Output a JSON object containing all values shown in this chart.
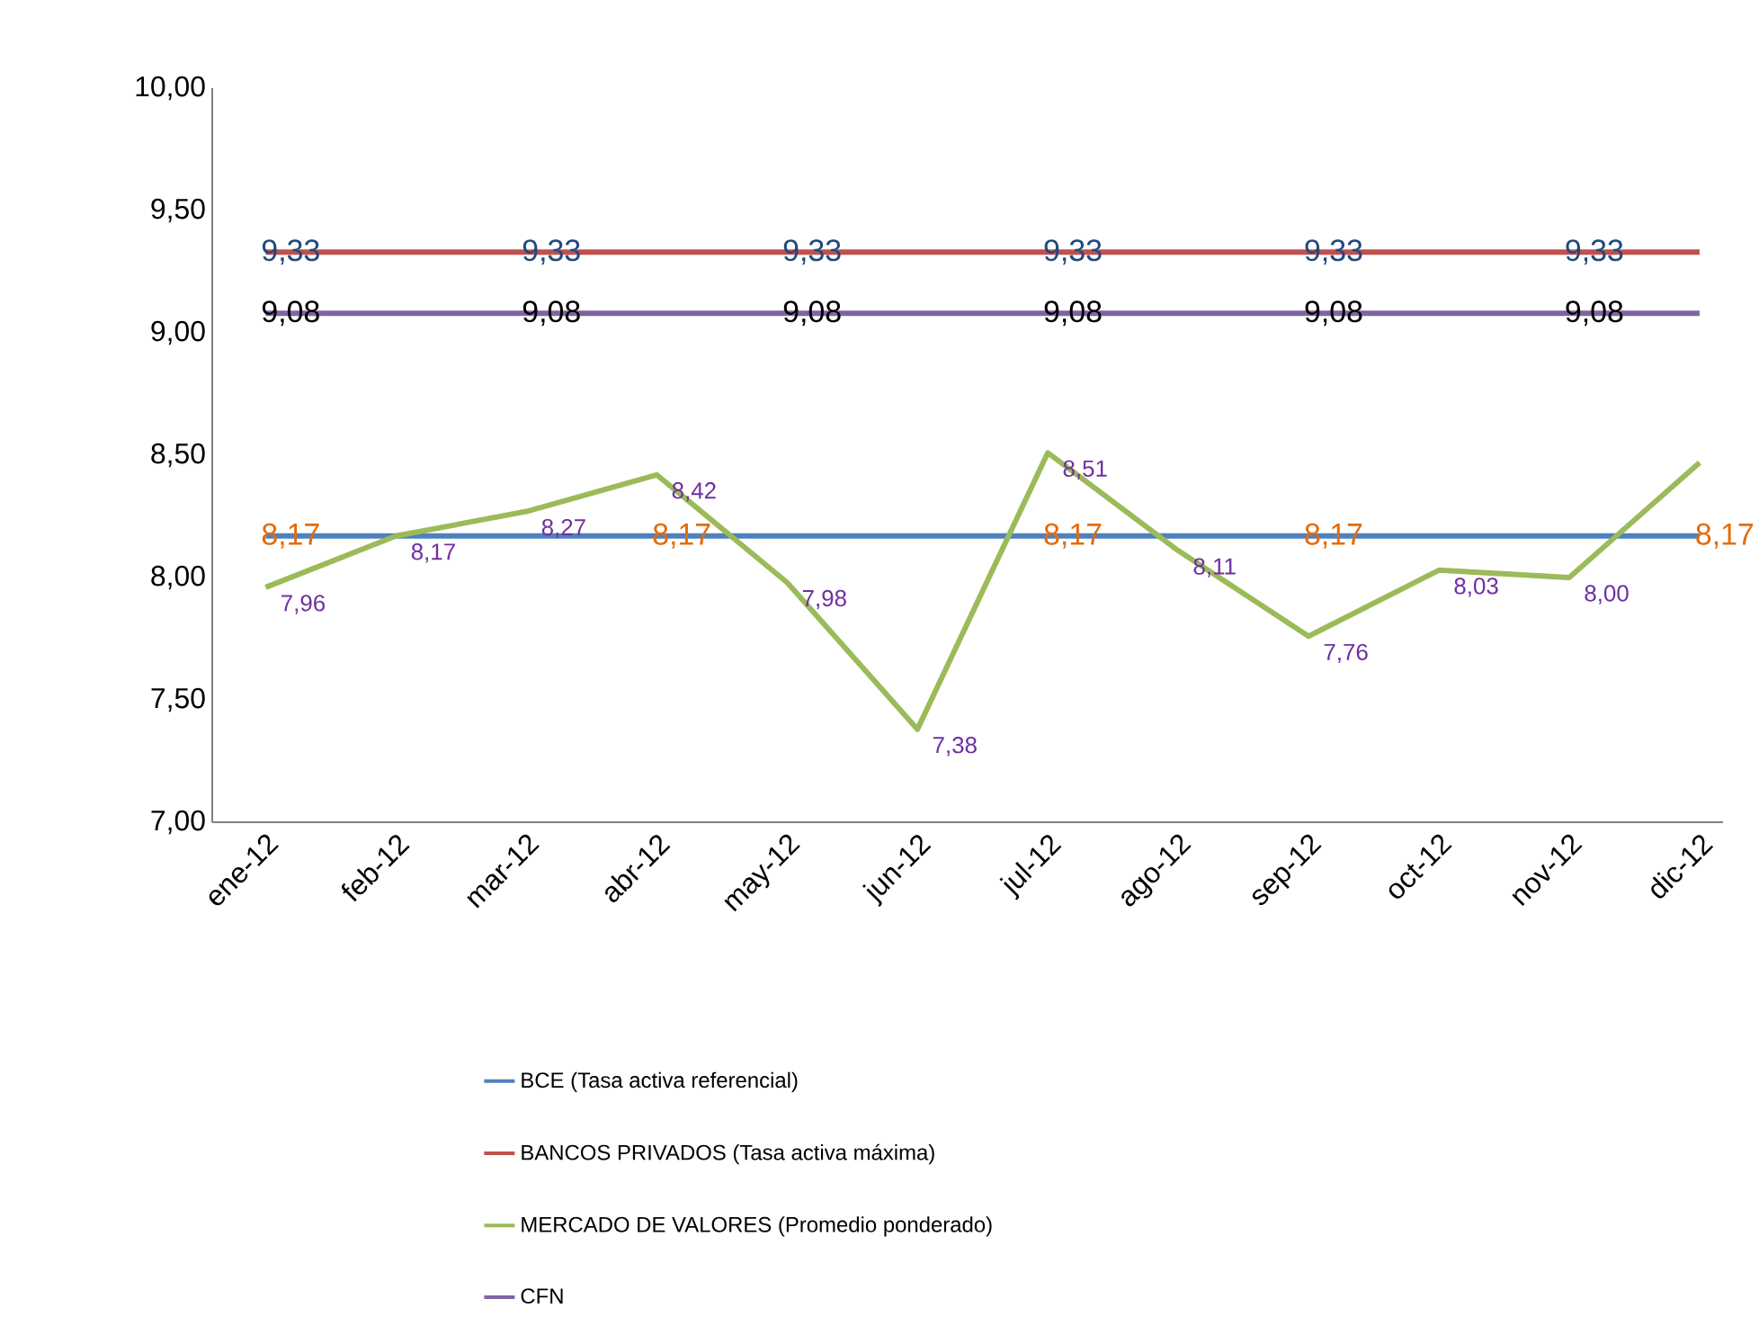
{
  "chart_data": {
    "type": "line",
    "categories": [
      "ene-12",
      "feb-12",
      "mar-12",
      "abr-12",
      "may-12",
      "jun-12",
      "jul-12",
      "ago-12",
      "sep-12",
      "oct-12",
      "nov-12",
      "dic-12"
    ],
    "series": [
      {
        "name": "BCE (Tasa activa referencial)",
        "color": "#4f81bd",
        "values": [
          8.17,
          8.17,
          8.17,
          8.17,
          8.17,
          8.17,
          8.17,
          8.17,
          8.17,
          8.17,
          8.17,
          8.17
        ],
        "value_labels": [
          "8,17",
          null,
          null,
          "8,17",
          null,
          null,
          "8,17",
          null,
          "8,17",
          null,
          null,
          "8,17"
        ]
      },
      {
        "name": "BANCOS PRIVADOS (Tasa activa máxima)",
        "color": "#c0504d",
        "values": [
          9.33,
          9.33,
          9.33,
          9.33,
          9.33,
          9.33,
          9.33,
          9.33,
          9.33,
          9.33,
          9.33,
          9.33
        ],
        "value_labels": [
          "9,33",
          null,
          "9,33",
          null,
          "9,33",
          null,
          "9,33",
          null,
          "9,33",
          null,
          "9,33",
          null
        ]
      },
      {
        "name": "MERCADO DE VALORES (Promedio ponderado)",
        "color": "#9bbb59",
        "values": [
          7.96,
          8.17,
          8.27,
          8.42,
          7.98,
          7.38,
          8.51,
          8.11,
          7.76,
          8.03,
          8.0,
          8.47
        ],
        "value_labels": [
          "7,96",
          "8,17",
          "8,27",
          "8,42",
          "7,98",
          "7,38",
          "8,51",
          "8,11",
          "7,76",
          "8,03",
          "8,00",
          null
        ]
      },
      {
        "name": "CFN",
        "color": "#8064a2",
        "values": [
          9.08,
          9.08,
          9.08,
          9.08,
          9.08,
          9.08,
          9.08,
          9.08,
          9.08,
          9.08,
          9.08,
          9.08
        ],
        "value_labels": [
          "9,08",
          null,
          "9,08",
          null,
          "9,08",
          null,
          "9,08",
          null,
          "9,08",
          null,
          "9,08",
          null
        ]
      }
    ],
    "ylim": [
      7,
      10
    ],
    "yticks": [
      {
        "value": 7,
        "label": "7,00"
      },
      {
        "value": 7.5,
        "label": "7,50"
      },
      {
        "value": 8,
        "label": "8,00"
      },
      {
        "value": 8.5,
        "label": "8,50"
      },
      {
        "value": 9,
        "label": "9,00"
      },
      {
        "value": 9.5,
        "label": "9,50"
      },
      {
        "value": 10,
        "label": "10,00"
      }
    ],
    "grid": false,
    "legend": "bottom",
    "marker": "none",
    "line_style": "solid"
  }
}
